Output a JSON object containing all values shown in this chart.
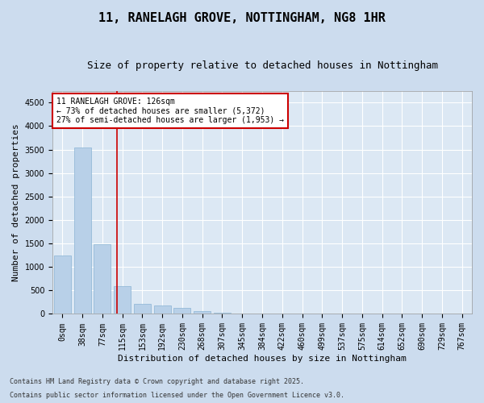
{
  "title": "11, RANELAGH GROVE, NOTTINGHAM, NG8 1HR",
  "subtitle": "Size of property relative to detached houses in Nottingham",
  "xlabel": "Distribution of detached houses by size in Nottingham",
  "ylabel": "Number of detached properties",
  "bar_color": "#b8d0e8",
  "bar_edge_color": "#8ab4d4",
  "background_color": "#ccdcee",
  "plot_bg_color": "#dce8f4",
  "grid_color": "#ffffff",
  "annotation_box_color": "#cc0000",
  "vline_color": "#cc0000",
  "categories": [
    "0sqm",
    "38sqm",
    "77sqm",
    "115sqm",
    "153sqm",
    "192sqm",
    "230sqm",
    "268sqm",
    "307sqm",
    "345sqm",
    "384sqm",
    "422sqm",
    "460sqm",
    "499sqm",
    "537sqm",
    "575sqm",
    "614sqm",
    "652sqm",
    "690sqm",
    "729sqm",
    "767sqm"
  ],
  "values": [
    1250,
    3550,
    1480,
    600,
    220,
    175,
    130,
    55,
    18,
    5,
    2,
    0,
    0,
    0,
    0,
    0,
    0,
    0,
    0,
    0,
    0
  ],
  "ylim": [
    0,
    4750
  ],
  "yticks": [
    0,
    500,
    1000,
    1500,
    2000,
    2500,
    3000,
    3500,
    4000,
    4500
  ],
  "vline_position": 2.73,
  "annotation_text_line1": "11 RANELAGH GROVE: 126sqm",
  "annotation_text_line2": "← 73% of detached houses are smaller (5,372)",
  "annotation_text_line3": "27% of semi-detached houses are larger (1,953) →",
  "footnote1": "Contains HM Land Registry data © Crown copyright and database right 2025.",
  "footnote2": "Contains public sector information licensed under the Open Government Licence v3.0.",
  "title_fontsize": 11,
  "subtitle_fontsize": 9,
  "xlabel_fontsize": 8,
  "ylabel_fontsize": 8,
  "tick_fontsize": 7,
  "annot_fontsize": 7,
  "footnote_fontsize": 6
}
